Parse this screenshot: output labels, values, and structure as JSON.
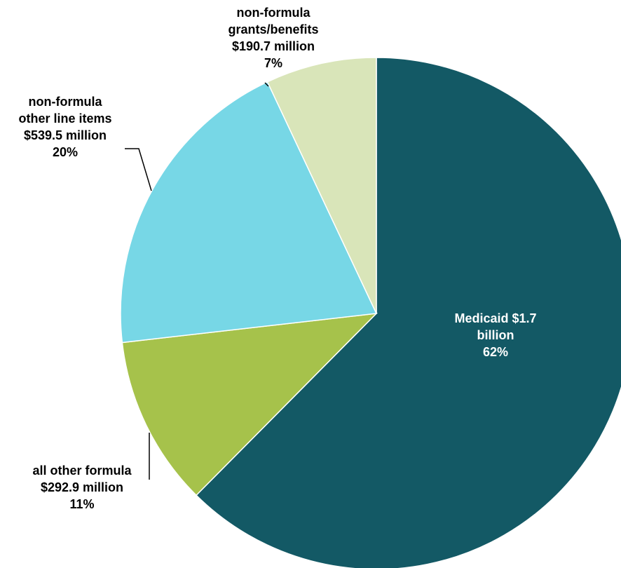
{
  "chart_data": {
    "type": "pie",
    "title": "",
    "slices": [
      {
        "key": "medicaid",
        "value": 1700,
        "percent": 62,
        "color": "#135965",
        "label_color": "#ffffff",
        "label_lines": [
          "Medicaid  $1.7",
          "billion",
          "62%"
        ]
      },
      {
        "key": "all-other-formula",
        "value": 292.9,
        "percent": 11,
        "color": "#a6c24b",
        "label_color": "#000000",
        "label_lines": [
          "all other formula",
          "$292.9 million",
          "11%"
        ]
      },
      {
        "key": "non-formula-other-line-items",
        "value": 539.5,
        "percent": 20,
        "color": "#77d7e6",
        "label_color": "#000000",
        "label_lines": [
          "non-formula",
          "other line items",
          "$539.5 million",
          "20%"
        ]
      },
      {
        "key": "non-formula-grants-benefits",
        "value": 190.7,
        "percent": 7,
        "color": "#d9e5b9",
        "label_color": "#000000",
        "label_lines": [
          "non-formula",
          "grants/benefits",
          "$190.7 million",
          "7%"
        ]
      }
    ]
  }
}
